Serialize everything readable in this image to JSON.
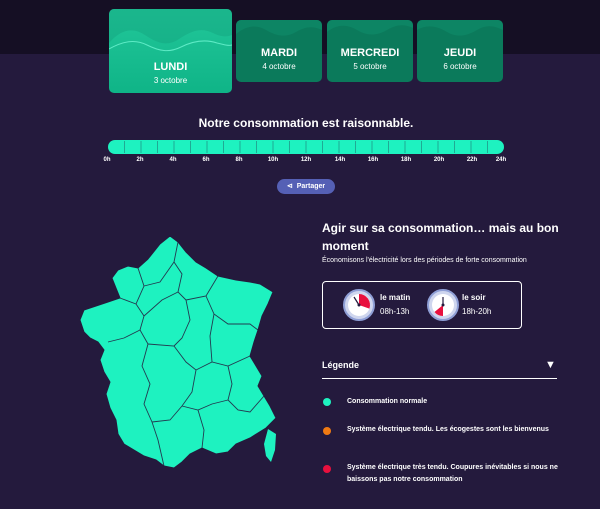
{
  "days": [
    {
      "name": "LUNDI",
      "date": "3 octobre"
    },
    {
      "name": "MARDI",
      "date": "4 octobre"
    },
    {
      "name": "MERCREDI",
      "date": "5 octobre"
    },
    {
      "name": "JEUDI",
      "date": "6 octobre"
    }
  ],
  "status_message": "Notre consommation est raisonnable.",
  "hours": [
    "0h",
    "2h",
    "4h",
    "6h",
    "8h",
    "10h",
    "12h",
    "14h",
    "16h",
    "18h",
    "20h",
    "22h",
    "24h"
  ],
  "share_label": "Partager",
  "advice": {
    "title": "Agir sur sa consommation… mais au bon moment",
    "subtitle": "Économisons l'électricité lors des périodes de forte consommation",
    "morning": {
      "label": "le matin",
      "hours": "08h-13h"
    },
    "evening": {
      "label": "le soir",
      "hours": "18h-20h"
    }
  },
  "legend": {
    "title": "Légende",
    "toggle": "▼",
    "items": [
      {
        "label": "Consommation normale",
        "color": "#1ef2c0"
      },
      {
        "label": "Système électrique tendu. Les écogestes sont les bienvenus",
        "color": "#f07a12"
      },
      {
        "label": "Système électrique très tendu. Coupures inévitables si nous ne baissons pas notre consommation",
        "color": "#e8103e"
      }
    ]
  },
  "colors": {
    "normal": "#1ef2c0",
    "background": "#241a3d",
    "card": "#0b7a5b"
  }
}
